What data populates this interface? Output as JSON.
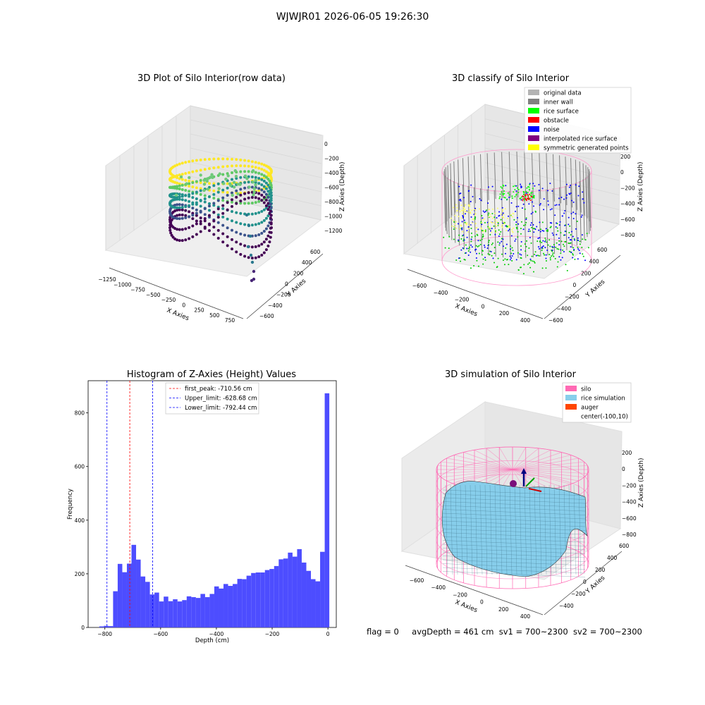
{
  "figure_title": "WJWJR01 2026-06-05 19:26:30",
  "status": {
    "flag": "flag = 0",
    "avg_depth": "avgDepth = 461 cm",
    "sv1": "sv1 = 700~2300",
    "sv2": "sv2 = 700~2300"
  },
  "chart_data": [
    {
      "type": "scatter",
      "title": "3D Plot of Silo Interior(row data)",
      "xlabel": "X Axies",
      "ylabel": "Y Axies",
      "zlabel": "Z Axies (Depth)",
      "x_ticks": [
        "−1250",
        "−1000",
        "−750",
        "−500",
        "−250",
        "0",
        "250",
        "500",
        "750"
      ],
      "y_ticks": [
        "−600",
        "−400",
        "−200",
        "0",
        "200",
        "400",
        "600"
      ],
      "z_ticks": [
        "0",
        "−200",
        "−400",
        "−600",
        "−800",
        "−1000",
        "−1200"
      ],
      "colormap": "viridis"
    },
    {
      "type": "scatter",
      "title": "3D classify of Silo Interior",
      "xlabel": "X Axies",
      "ylabel": "Y Axies",
      "zlabel": "Z Axies (Depth)",
      "x_ticks": [
        "−600",
        "−400",
        "−200",
        "0",
        "200",
        "400"
      ],
      "y_ticks": [
        "−600",
        "−400",
        "−200",
        "0",
        "200",
        "400",
        "600"
      ],
      "z_ticks": [
        "200",
        "0",
        "−200",
        "−400",
        "−600",
        "−800"
      ],
      "legend": [
        {
          "label": "original data",
          "color": "#b3b3b3"
        },
        {
          "label": "inner wall",
          "color": "#808080"
        },
        {
          "label": "rice surface",
          "color": "#00ff00"
        },
        {
          "label": "obstacle",
          "color": "#ff0000"
        },
        {
          "label": "noise",
          "color": "#0000ff"
        },
        {
          "label": "interpolated rice surface",
          "color": "#800080"
        },
        {
          "label": "symmetric generated points",
          "color": "#ffff00"
        }
      ],
      "legend_position": "top-right"
    },
    {
      "type": "bar",
      "title": "Histogram of Z-Axies (Height) Values",
      "xlabel": "Depth (cm)",
      "ylabel": "Frequency",
      "xlim": [
        -860,
        30
      ],
      "ylim": [
        0,
        920
      ],
      "x_ticks": [
        -800,
        -600,
        -400,
        -200,
        0
      ],
      "x_tick_labels": [
        "−800",
        "−600",
        "−400",
        "−200",
        "0"
      ],
      "y_ticks": [
        0,
        200,
        400,
        600,
        800
      ],
      "bin_width": 16.5,
      "bins": [
        {
          "x": -820,
          "y": 4
        },
        {
          "x": -803.5,
          "y": 6
        },
        {
          "x": -787,
          "y": 5
        },
        {
          "x": -770.5,
          "y": 135
        },
        {
          "x": -754,
          "y": 237
        },
        {
          "x": -737.5,
          "y": 206
        },
        {
          "x": -721,
          "y": 238
        },
        {
          "x": -704.5,
          "y": 308
        },
        {
          "x": -688,
          "y": 253
        },
        {
          "x": -671.5,
          "y": 190
        },
        {
          "x": -655,
          "y": 170
        },
        {
          "x": -638.5,
          "y": 123
        },
        {
          "x": -622,
          "y": 130
        },
        {
          "x": -605.5,
          "y": 97
        },
        {
          "x": -589,
          "y": 115
        },
        {
          "x": -572.5,
          "y": 98
        },
        {
          "x": -556,
          "y": 105
        },
        {
          "x": -539.5,
          "y": 97
        },
        {
          "x": -523,
          "y": 102
        },
        {
          "x": -506.5,
          "y": 116
        },
        {
          "x": -490,
          "y": 113
        },
        {
          "x": -473.5,
          "y": 110
        },
        {
          "x": -457,
          "y": 125
        },
        {
          "x": -440.5,
          "y": 113
        },
        {
          "x": -424,
          "y": 125
        },
        {
          "x": -407.5,
          "y": 153
        },
        {
          "x": -391,
          "y": 145
        },
        {
          "x": -374.5,
          "y": 162
        },
        {
          "x": -358,
          "y": 155
        },
        {
          "x": -341.5,
          "y": 162
        },
        {
          "x": -325,
          "y": 181
        },
        {
          "x": -308.5,
          "y": 180
        },
        {
          "x": -292,
          "y": 193
        },
        {
          "x": -275.5,
          "y": 203
        },
        {
          "x": -259,
          "y": 205
        },
        {
          "x": -242.5,
          "y": 205
        },
        {
          "x": -226,
          "y": 214
        },
        {
          "x": -209.5,
          "y": 218
        },
        {
          "x": -193,
          "y": 229
        },
        {
          "x": -176.5,
          "y": 254
        },
        {
          "x": -160,
          "y": 257
        },
        {
          "x": -143.5,
          "y": 279
        },
        {
          "x": -127,
          "y": 264
        },
        {
          "x": -110.5,
          "y": 292
        },
        {
          "x": -94,
          "y": 242
        },
        {
          "x": -77.5,
          "y": 211
        },
        {
          "x": -61,
          "y": 180
        },
        {
          "x": -44.5,
          "y": 172
        },
        {
          "x": -28,
          "y": 282
        },
        {
          "x": -11.5,
          "y": 873
        }
      ],
      "bar_color": "#4d4dff",
      "lines": [
        {
          "label": "first_peak: -710.56 cm",
          "x": -710.56,
          "color": "#ff0000"
        },
        {
          "label": "Upper_limit: -628.68 cm",
          "x": -628.68,
          "color": "#0000ff"
        },
        {
          "label": "Lower_limit: -792.44 cm",
          "x": -792.44,
          "color": "#0000ff"
        }
      ],
      "legend_position": "top-center"
    },
    {
      "type": "surface",
      "title": "3D simulation of Silo Interior",
      "xlabel": "X Axies",
      "ylabel": "Y Axies",
      "zlabel": "Z Axies (Depth)",
      "x_ticks": [
        "−600",
        "−400",
        "−200",
        "0",
        "200",
        "400"
      ],
      "y_ticks": [
        "−400",
        "−200",
        "0",
        "200",
        "400",
        "600"
      ],
      "z_ticks": [
        "200",
        "0",
        "−200",
        "−400",
        "−600",
        "−800"
      ],
      "legend": [
        {
          "label": "silo",
          "color": "#ff69b4"
        },
        {
          "label": "rice simulation",
          "color": "#87ceeb"
        },
        {
          "label": "auger",
          "color": "#ff4500"
        },
        {
          "label": "center(-100,10)",
          "color": ""
        }
      ],
      "legend_position": "top-right"
    }
  ]
}
